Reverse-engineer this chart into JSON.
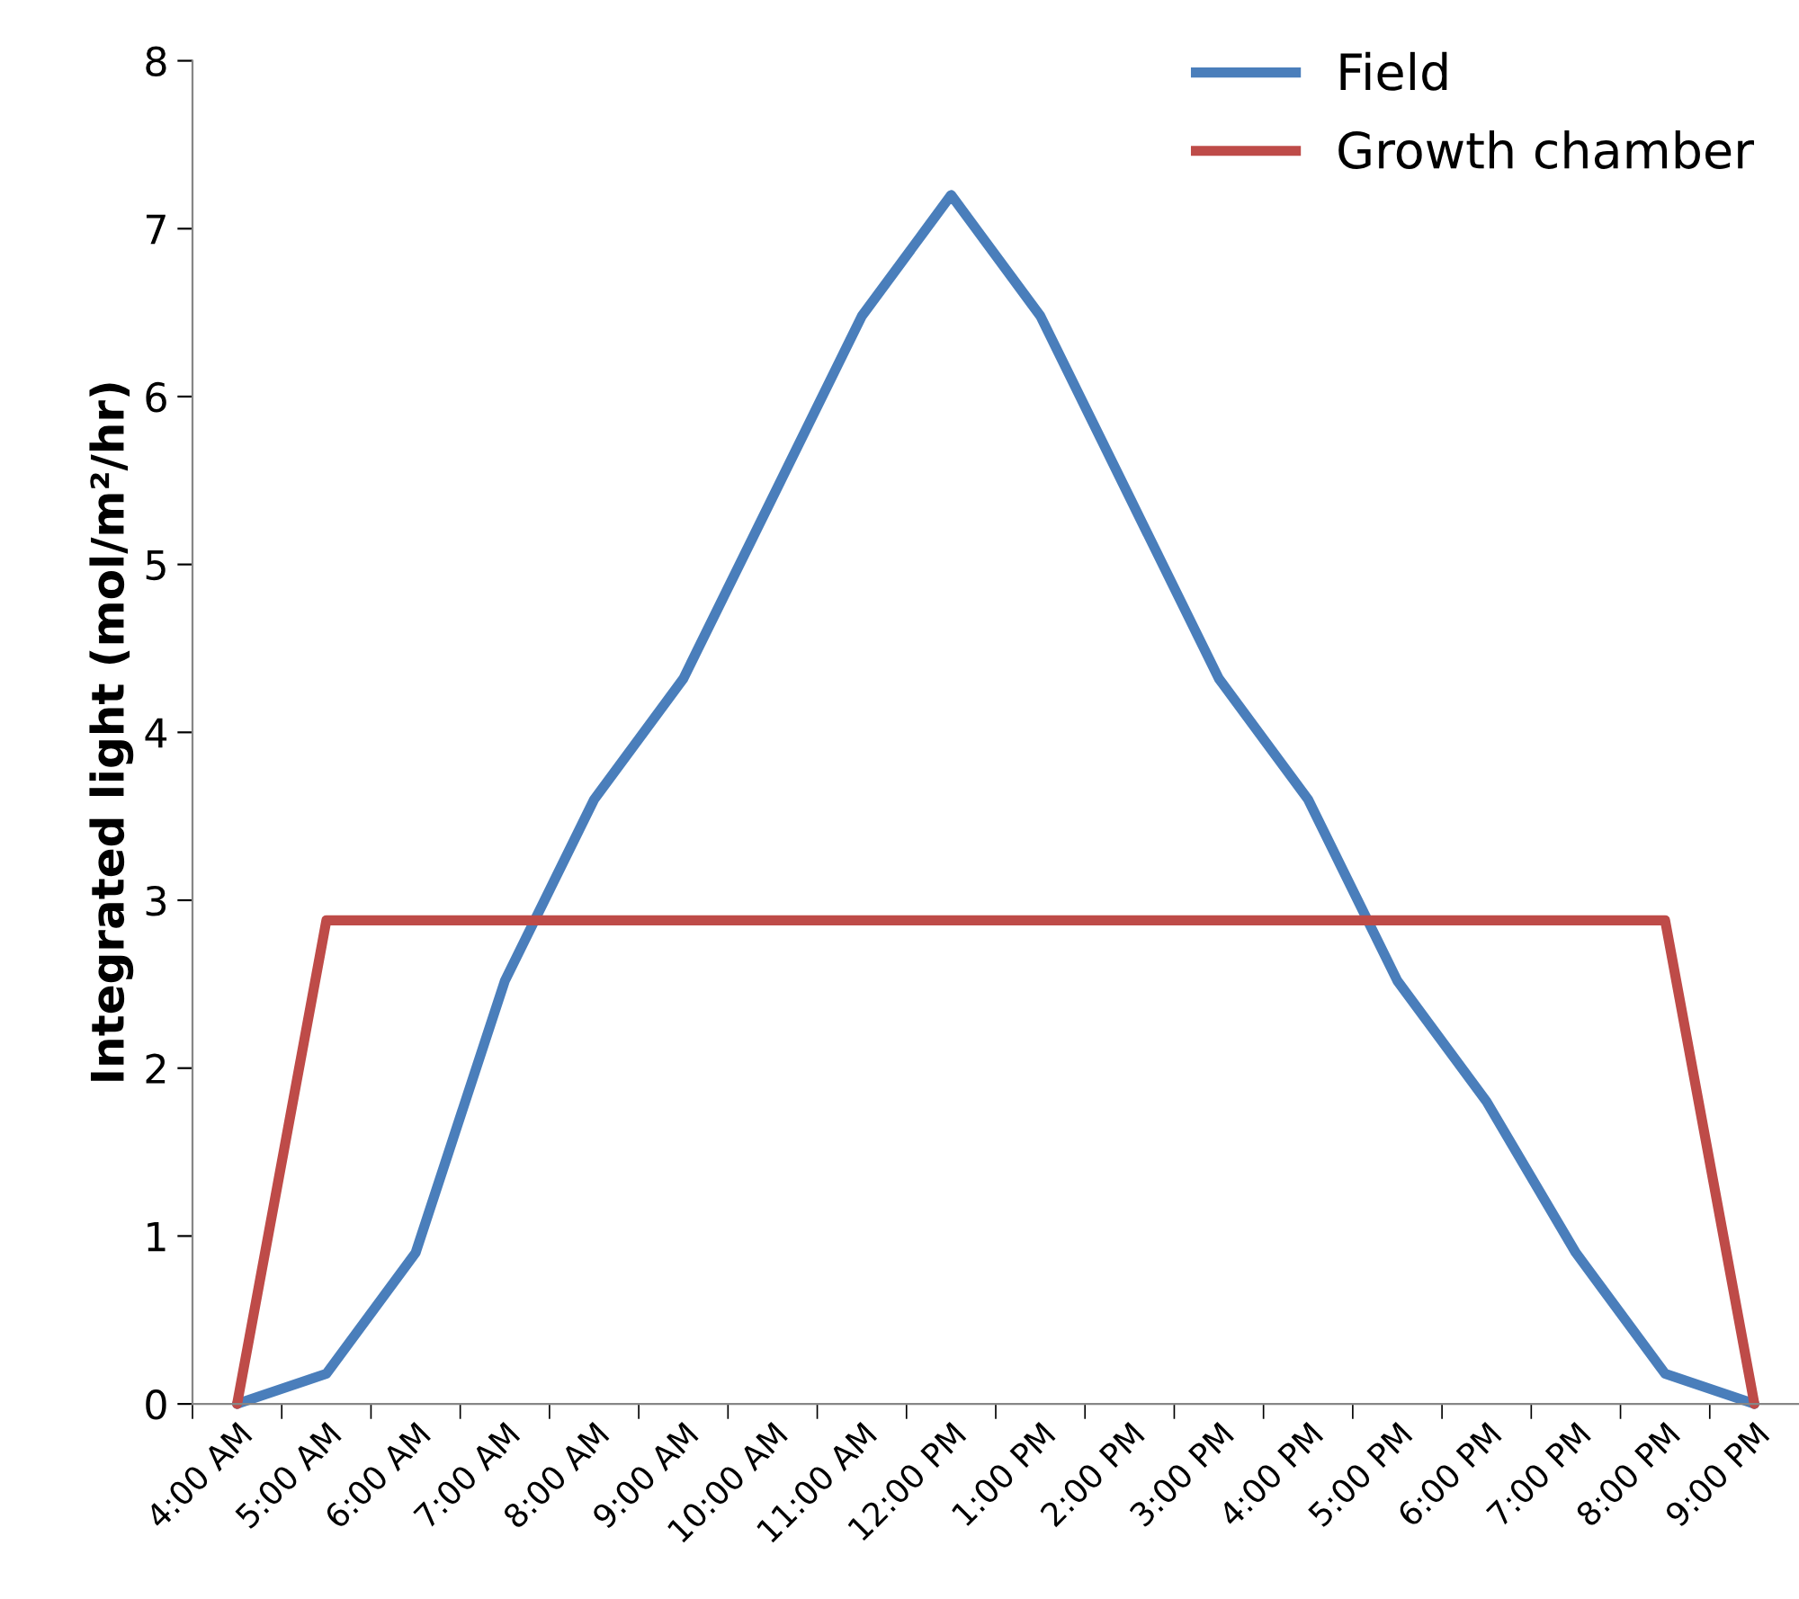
{
  "chart_data": {
    "type": "line",
    "ylabel": "Integrated light (mol/m²/hr)",
    "categories": [
      "4:00 AM",
      "5:00 AM",
      "6:00 AM",
      "7:00 AM",
      "8:00 AM",
      "9:00 AM",
      "10:00 AM",
      "11:00 AM",
      "12:00 PM",
      "1:00 PM",
      "2:00 PM",
      "3:00 PM",
      "4:00 PM",
      "5:00 PM",
      "6:00 PM",
      "7:00 PM",
      "8:00 PM",
      "9:00 PM"
    ],
    "series": [
      {
        "name": "Field",
        "color": "#4a7ebb",
        "values": [
          0,
          0.18,
          0.9,
          2.52,
          3.6,
          4.32,
          5.4,
          6.48,
          7.2,
          6.48,
          5.4,
          4.32,
          3.6,
          2.52,
          1.8,
          0.9,
          0.18,
          0
        ]
      },
      {
        "name": "Growth chamber",
        "color": "#be4b48",
        "values": [
          0,
          2.88,
          2.88,
          2.88,
          2.88,
          2.88,
          2.88,
          2.88,
          2.88,
          2.88,
          2.88,
          2.88,
          2.88,
          2.88,
          2.88,
          2.88,
          2.88,
          0
        ]
      }
    ],
    "ylim": [
      0,
      8
    ],
    "yticks": [
      0,
      1,
      2,
      3,
      4,
      5,
      6,
      7,
      8
    ],
    "grid": false,
    "legend": "top right",
    "marker": "none",
    "line_style": "solid"
  }
}
